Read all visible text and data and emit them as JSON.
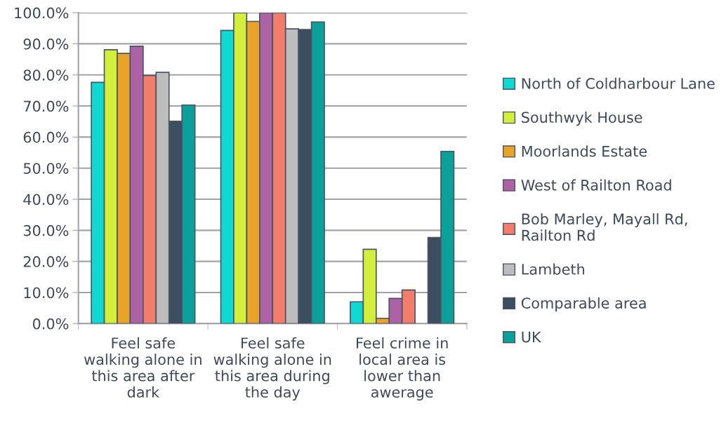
{
  "chart_data": {
    "type": "bar",
    "categories": [
      "Feel safe\nwalking alone in\nthis area after\ndark",
      "Feel safe\nwalking alone in\nthis area during\nthe day",
      "Feel crime in\nlocal area is\nlower than\nawerage"
    ],
    "series": [
      {
        "name": "North of Coldharbour Lane",
        "color": "#0fd9d2",
        "values": [
          77.6,
          94.3,
          7.0
        ]
      },
      {
        "name": "Southwyk House",
        "color": "#d4ee3c",
        "values": [
          88.1,
          100.0,
          23.9
        ]
      },
      {
        "name": "Moorlands Estate",
        "color": "#e9a328",
        "values": [
          86.9,
          97.2,
          1.7
        ]
      },
      {
        "name": "West of Railton Road",
        "color": "#ad62a4",
        "values": [
          89.2,
          100.0,
          8.1
        ]
      },
      {
        "name": "Bob Marley, Mayall Rd,\nRailton Rd",
        "color": "#f27d6a",
        "values": [
          79.8,
          100.0,
          10.8
        ]
      },
      {
        "name": "Lambeth",
        "color": "#bdbdbd",
        "values": [
          80.8,
          94.8,
          null
        ]
      },
      {
        "name": "Comparable area",
        "color": "#3d4e60",
        "values": [
          65.1,
          94.6,
          27.7
        ]
      },
      {
        "name": "UK",
        "color": "#0ca09b",
        "values": [
          70.3,
          97.0,
          55.4
        ]
      }
    ],
    "ylim": [
      0,
      100
    ],
    "yticks": [
      {
        "value": 0,
        "label": "0.0%"
      },
      {
        "value": 10,
        "label": "10.0%"
      },
      {
        "value": 20,
        "label": "20.0%"
      },
      {
        "value": 30,
        "label": "30.0%"
      },
      {
        "value": 40,
        "label": "40.0%"
      },
      {
        "value": 50,
        "label": "50.0%"
      },
      {
        "value": 60,
        "label": "60.0%"
      },
      {
        "value": 70,
        "label": "70.0%"
      },
      {
        "value": 80,
        "label": "80.0%"
      },
      {
        "value": 90,
        "label": "90.0%"
      },
      {
        "value": 100,
        "label": "100.0%"
      }
    ],
    "grid": "y",
    "legend": "right"
  }
}
